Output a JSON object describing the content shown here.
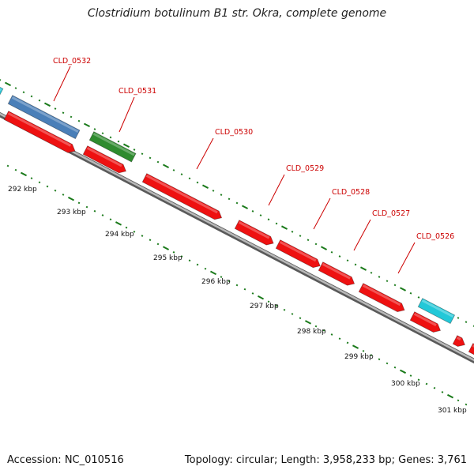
{
  "title": "Clostridium botulinum B1 str. Okra, complete genome",
  "footer": {
    "accession": "Accession: NC_010516",
    "summary": "Topology: circular; Length: 3,958,233 bp; Genes: 3,761"
  },
  "colors": {
    "gene_forward_blue": "#4a7fb8",
    "gene_forward_green": "#2e8b2e",
    "gene_reverse_red": "#ee1111",
    "gene_cyan": "#22c8d8",
    "label_red": "#cc0000",
    "tick_green": "#1a7a1a",
    "backbone": "#8a8a8a"
  },
  "genes": [
    {
      "label": "CLD_0532"
    },
    {
      "label": "CLD_0531"
    },
    {
      "label": "CLD_0530"
    },
    {
      "label": "CLD_0529"
    },
    {
      "label": "CLD_0528"
    },
    {
      "label": "CLD_0527"
    },
    {
      "label": "CLD_0526"
    }
  ],
  "scale_labels": [
    "292 kbp",
    "293 kbp",
    "294 kbp",
    "295 kbp",
    "296 kbp",
    "297 kbp",
    "298 kbp",
    "299 kbp",
    "300 kbp",
    "301 kbp"
  ]
}
